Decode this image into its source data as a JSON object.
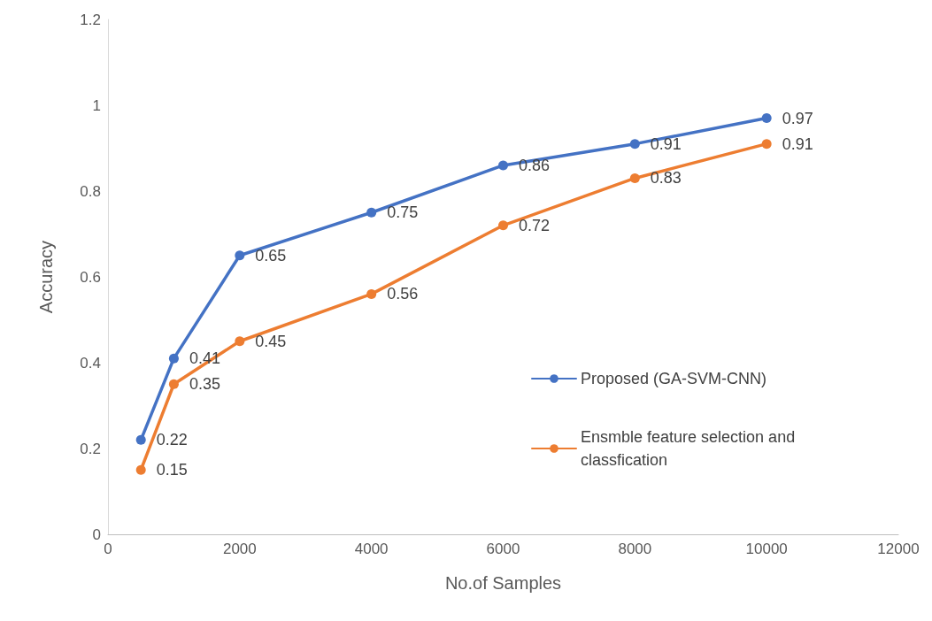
{
  "chart_data": {
    "type": "line",
    "xlabel": "No.of Samples",
    "ylabel": "Accuracy",
    "x": [
      500,
      1000,
      2000,
      4000,
      6000,
      8000,
      10000
    ],
    "series": [
      {
        "name": "Proposed (GA-SVM-CNN)",
        "color": "#4472c4",
        "values": [
          0.22,
          0.41,
          0.65,
          0.75,
          0.86,
          0.91,
          0.97
        ]
      },
      {
        "name": "Ensmble feature selection and classfication",
        "color": "#ed7d31",
        "values": [
          0.15,
          0.35,
          0.45,
          0.56,
          0.72,
          0.83,
          0.91
        ]
      }
    ],
    "xlim": [
      0,
      12000
    ],
    "xticks": [
      0,
      2000,
      4000,
      6000,
      8000,
      10000,
      12000
    ],
    "ylim": [
      0,
      1.2
    ],
    "yticks": [
      0,
      0.2,
      0.4,
      0.6,
      0.8,
      1,
      1.2
    ],
    "grid": false,
    "legend": "right",
    "marker": "circle",
    "line_style": "solid",
    "data_labels": true
  }
}
